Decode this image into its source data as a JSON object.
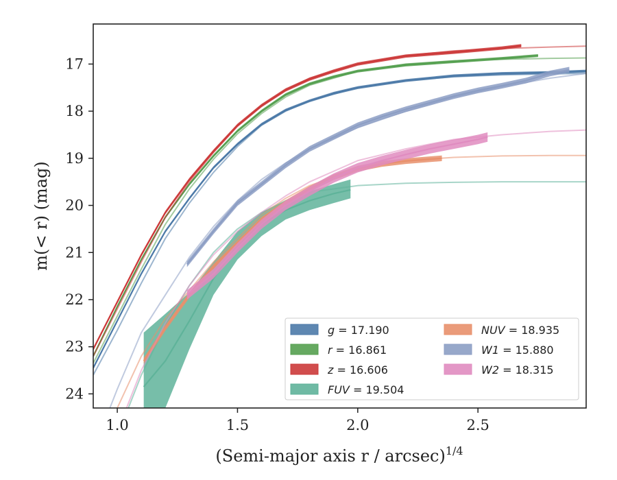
{
  "chart_data": {
    "type": "line",
    "xlabel": "(Semi-major axis r / arcsec)",
    "xlabel_superscript": "1/4",
    "ylabel": "m(< r) (mag)",
    "xlim": [
      0.9,
      2.95
    ],
    "ylim": [
      24.3,
      16.15
    ],
    "y_inverted": true,
    "x_ticks": [
      "1.0",
      "1.5",
      "2.0",
      "2.5"
    ],
    "y_ticks": [
      "17",
      "18",
      "19",
      "20",
      "21",
      "22",
      "23",
      "24"
    ],
    "x_tick_values": [
      1.0,
      1.5,
      2.0,
      2.5
    ],
    "y_tick_values": [
      17,
      18,
      19,
      20,
      21,
      22,
      23,
      24
    ],
    "grid": false,
    "legend_position": "lower-right",
    "legend_columns": 2,
    "series": [
      {
        "key": "g",
        "name": "g = 17.190",
        "legend_var": "g",
        "legend_value": "= 17.190",
        "color": "#4c7aa8",
        "band_half_width": 0.03,
        "x": [
          0.9,
          1.0,
          1.1,
          1.2,
          1.3,
          1.4,
          1.5,
          1.6,
          1.7,
          1.8,
          1.9,
          2.0,
          2.2,
          2.4,
          2.6,
          2.8,
          2.95
        ],
        "y": [
          23.45,
          22.45,
          21.45,
          20.55,
          19.85,
          19.2,
          18.7,
          18.28,
          17.98,
          17.78,
          17.62,
          17.5,
          17.35,
          17.25,
          17.2,
          17.18,
          17.15
        ],
        "model_x": [
          0.9,
          1.0,
          1.1,
          1.2,
          1.3,
          1.4,
          1.5,
          1.6,
          1.7,
          1.8,
          2.0,
          2.2,
          2.4,
          2.6,
          2.8,
          2.95
        ],
        "model_y": [
          23.6,
          22.65,
          21.65,
          20.7,
          19.95,
          19.3,
          18.75,
          18.3,
          18.0,
          17.78,
          17.5,
          17.35,
          17.27,
          17.23,
          17.21,
          17.2
        ]
      },
      {
        "key": "r",
        "name": "r = 16.861",
        "legend_var": "r",
        "legend_value": "= 16.861",
        "color": "#55a050",
        "band_half_width": 0.03,
        "x": [
          0.9,
          1.0,
          1.1,
          1.2,
          1.3,
          1.4,
          1.5,
          1.6,
          1.7,
          1.8,
          1.9,
          2.0,
          2.2,
          2.4,
          2.6,
          2.75
        ],
        "y": [
          23.2,
          22.15,
          21.15,
          20.25,
          19.55,
          18.95,
          18.42,
          18.0,
          17.65,
          17.42,
          17.27,
          17.15,
          17.02,
          16.95,
          16.88,
          16.82
        ],
        "model_x": [
          0.9,
          1.0,
          1.1,
          1.2,
          1.3,
          1.4,
          1.5,
          1.6,
          1.7,
          1.8,
          2.0,
          2.2,
          2.4,
          2.6,
          2.8,
          2.95
        ],
        "model_y": [
          23.35,
          22.35,
          21.35,
          20.4,
          19.65,
          19.02,
          18.48,
          18.05,
          17.7,
          17.45,
          17.15,
          17.0,
          16.93,
          16.9,
          16.88,
          16.87
        ]
      },
      {
        "key": "z",
        "name": "z = 16.606",
        "legend_var": "z",
        "legend_value": "= 16.606",
        "color": "#cc3a3a",
        "band_half_width": 0.035,
        "x": [
          0.9,
          1.0,
          1.1,
          1.2,
          1.3,
          1.4,
          1.5,
          1.6,
          1.7,
          1.8,
          1.9,
          2.0,
          2.2,
          2.4,
          2.6,
          2.68
        ],
        "y": [
          23.05,
          22.05,
          21.05,
          20.15,
          19.45,
          18.85,
          18.3,
          17.88,
          17.55,
          17.32,
          17.15,
          17.0,
          16.83,
          16.75,
          16.66,
          16.61
        ],
        "model_x": [
          0.9,
          1.0,
          1.1,
          1.2,
          1.3,
          1.4,
          1.5,
          1.6,
          1.7,
          1.8,
          2.0,
          2.2,
          2.4,
          2.6,
          2.8,
          2.95
        ],
        "model_y": [
          23.2,
          22.2,
          21.2,
          20.25,
          19.5,
          18.88,
          18.32,
          17.9,
          17.55,
          17.3,
          17.0,
          16.82,
          16.72,
          16.67,
          16.64,
          16.62
        ]
      },
      {
        "key": "FUV",
        "name": "FUV = 19.504",
        "legend_var": "FUV",
        "legend_value": "= 19.504",
        "color": "#5fb39a",
        "x": [
          1.11,
          1.2,
          1.3,
          1.4,
          1.5,
          1.6,
          1.7,
          1.8,
          1.9,
          1.97
        ],
        "y": [
          23.85,
          23.3,
          22.45,
          21.55,
          20.85,
          20.4,
          20.1,
          19.9,
          19.75,
          19.67
        ],
        "band_upper": [
          22.7,
          22.3,
          21.85,
          21.2,
          20.55,
          20.15,
          19.9,
          19.7,
          19.55,
          19.45
        ],
        "band_lower": [
          25.0,
          24.3,
          23.05,
          21.9,
          21.15,
          20.65,
          20.3,
          20.1,
          19.95,
          19.85
        ],
        "model_x": [
          0.9,
          1.0,
          1.1,
          1.2,
          1.3,
          1.4,
          1.5,
          1.6,
          1.7,
          1.8,
          2.0,
          2.2,
          2.4,
          2.6,
          2.8,
          2.95
        ],
        "model_y": [
          26.0,
          24.9,
          23.6,
          22.55,
          21.7,
          21.0,
          20.5,
          20.15,
          19.9,
          19.72,
          19.58,
          19.53,
          19.51,
          19.5,
          19.5,
          19.5
        ]
      },
      {
        "key": "NUV",
        "name": "NUV = 18.935",
        "legend_var": "NUV",
        "legend_value": "= 18.935",
        "color": "#e8906c",
        "band_half_width": 0.06,
        "x": [
          1.11,
          1.2,
          1.3,
          1.4,
          1.5,
          1.6,
          1.7,
          1.8,
          1.9,
          2.0,
          2.1,
          2.2,
          2.35
        ],
        "y": [
          23.3,
          22.6,
          21.9,
          21.3,
          20.8,
          20.3,
          19.95,
          19.65,
          19.4,
          19.22,
          19.12,
          19.06,
          19.0
        ],
        "model_x": [
          0.9,
          1.0,
          1.1,
          1.2,
          1.3,
          1.4,
          1.5,
          1.6,
          1.7,
          1.8,
          2.0,
          2.2,
          2.4,
          2.6,
          2.8,
          2.95
        ],
        "model_y": [
          25.4,
          24.3,
          23.2,
          22.4,
          21.8,
          21.2,
          20.7,
          20.2,
          19.85,
          19.58,
          19.22,
          19.05,
          18.98,
          18.95,
          18.94,
          18.94
        ]
      },
      {
        "key": "W1",
        "name": "W1 = 15.880",
        "legend_var": "W1",
        "legend_value": "= 15.880",
        "color": "#8c9ec4",
        "band_half_width": 0.06,
        "x": [
          1.29,
          1.4,
          1.5,
          1.6,
          1.7,
          1.8,
          1.9,
          2.0,
          2.1,
          2.2,
          2.3,
          2.4,
          2.5,
          2.6,
          2.7,
          2.8,
          2.88
        ],
        "y": [
          21.25,
          20.55,
          19.95,
          19.55,
          19.15,
          18.8,
          18.55,
          18.3,
          18.12,
          17.96,
          17.82,
          17.68,
          17.56,
          17.46,
          17.35,
          17.2,
          17.12
        ],
        "model_x": [
          0.9,
          1.0,
          1.1,
          1.2,
          1.3,
          1.4,
          1.5,
          1.6,
          1.7,
          1.8,
          2.0,
          2.2,
          2.4,
          2.6,
          2.8,
          2.95
        ],
        "model_y": [
          25.2,
          23.9,
          22.7,
          21.9,
          21.1,
          20.45,
          19.9,
          19.45,
          19.1,
          18.8,
          18.35,
          18.0,
          17.7,
          17.48,
          17.3,
          17.2
        ]
      },
      {
        "key": "W2",
        "name": "W2 = 18.315",
        "legend_var": "W2",
        "legend_value": "= 18.315",
        "color": "#e08cc0",
        "band_half_width": 0.1,
        "x": [
          1.29,
          1.4,
          1.5,
          1.6,
          1.7,
          1.8,
          1.9,
          2.0,
          2.1,
          2.2,
          2.3,
          2.4,
          2.5,
          2.54
        ],
        "y": [
          21.9,
          21.45,
          20.9,
          20.4,
          20.0,
          19.7,
          19.42,
          19.2,
          19.05,
          18.92,
          18.8,
          18.7,
          18.6,
          18.55
        ],
        "model_x": [
          0.9,
          1.0,
          1.1,
          1.2,
          1.3,
          1.4,
          1.5,
          1.6,
          1.7,
          1.8,
          2.0,
          2.2,
          2.4,
          2.6,
          2.8,
          2.95
        ],
        "model_y": [
          26.0,
          24.8,
          23.5,
          22.5,
          21.7,
          21.05,
          20.55,
          20.15,
          19.8,
          19.5,
          19.05,
          18.8,
          18.6,
          18.5,
          18.43,
          18.4
        ]
      }
    ]
  }
}
